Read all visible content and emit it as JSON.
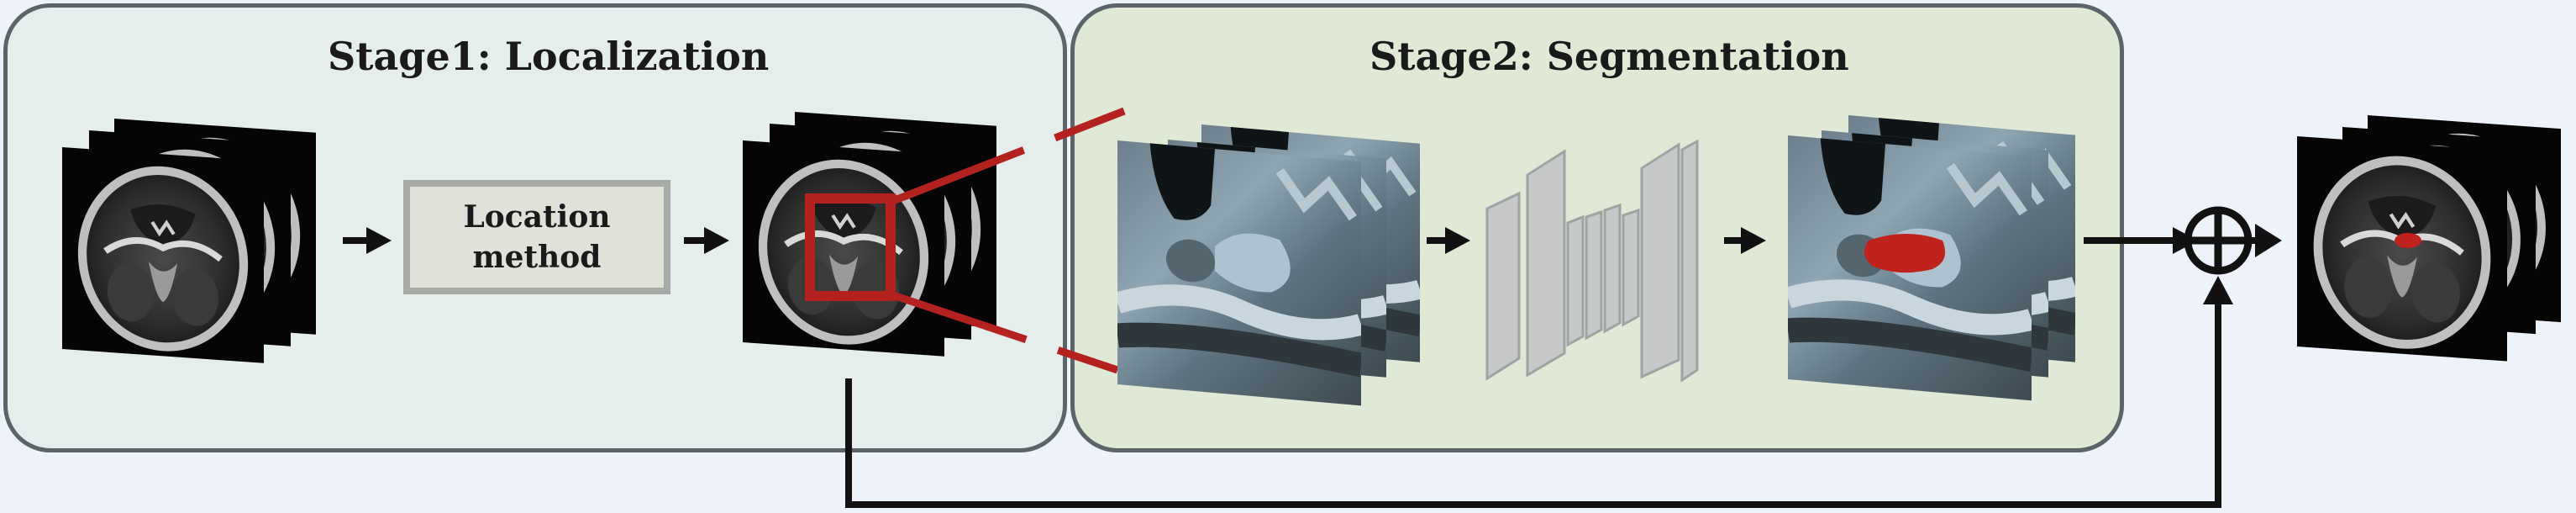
{
  "stages": [
    {
      "title": "Stage1: Localization"
    },
    {
      "title": "Stage2: Segmentation"
    }
  ],
  "location_method": {
    "label": "Location\nmethod"
  },
  "colors": {
    "crop_box": "#b3221f",
    "segmentation": "#c0221d",
    "stage1_fill": "#e6eeed",
    "stage2_fill": "#dfe9d6",
    "panel_border": "#5d6468",
    "network": "#c7c9c8"
  },
  "icons": {
    "combine": "circle-plus-icon",
    "arrows": "arrow-right-icon"
  }
}
